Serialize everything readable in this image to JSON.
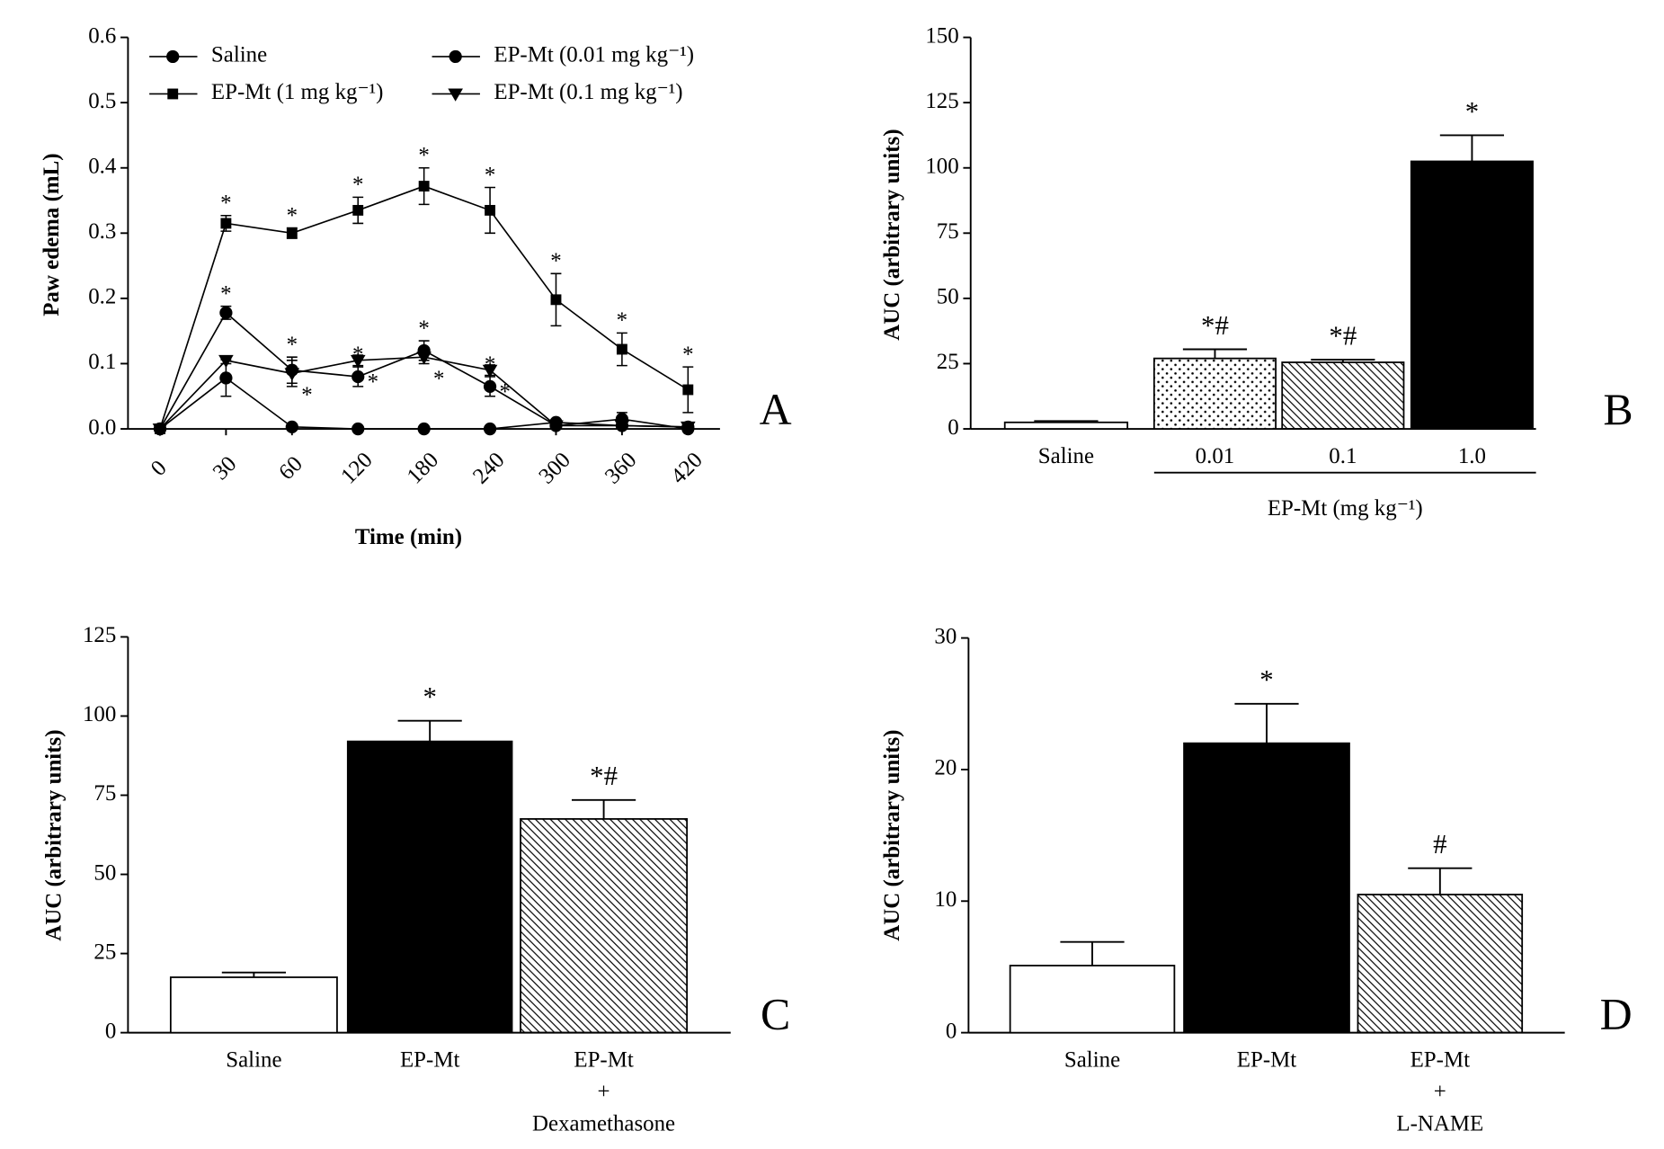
{
  "chart_data": [
    {
      "type": "line",
      "panel_label": "A",
      "ylabel": "Paw edema (mL)",
      "xlabel": "Time (min)",
      "categories": [
        "0",
        "30",
        "60",
        "120",
        "180",
        "240",
        "300",
        "360",
        "420"
      ],
      "ylim": [
        0,
        0.6
      ],
      "yticks": [
        {
          "value": 0,
          "label": "0.0"
        },
        0.1,
        0.2,
        0.3,
        0.4,
        0.5,
        0.6
      ],
      "series": [
        {
          "name": "Saline",
          "color": "#000000",
          "marker": "circle",
          "values": [
            0,
            0.078,
            0.003,
            0,
            0,
            0,
            0.01,
            0.005,
            0.003
          ],
          "errors": [
            0,
            0.028,
            0,
            0,
            0,
            0,
            0,
            0,
            0
          ]
        },
        {
          "name": "EP-Mt (1 mg kg⁻¹)",
          "color": "#000000",
          "marker": "square",
          "values": [
            0,
            0.315,
            0.3,
            0.335,
            0.372,
            0.335,
            0.198,
            0.122,
            0.06
          ],
          "errors": [
            0,
            0.012,
            0.008,
            0.02,
            0.028,
            0.035,
            0.04,
            0.025,
            0.035
          ],
          "annotations": [
            null,
            "*",
            "*",
            "*",
            "*",
            "*",
            "*",
            "*",
            "*"
          ]
        },
        {
          "name": "EP-Mt (0.01 mg kg⁻¹)",
          "color": "#000000",
          "marker": "circle",
          "values": [
            0,
            0.178,
            0.09,
            0.08,
            0.12,
            0.065,
            0.005,
            0.015,
            0
          ],
          "errors": [
            0,
            0.01,
            0.02,
            0.015,
            0.015,
            0.015,
            0,
            0.01,
            0
          ],
          "annotations": [
            null,
            "*",
            "*",
            "*",
            "*",
            "*",
            null,
            null,
            null
          ]
        },
        {
          "name": "EP-Mt (0.1 mg kg⁻¹)",
          "color": "#000000",
          "marker": "triangle-down",
          "values": [
            0,
            0.105,
            0.085,
            0.105,
            0.11,
            0.09,
            0.005,
            0.005,
            0.003
          ],
          "errors": [
            0,
            0.005,
            0.02,
            0.008,
            0.01,
            0.008,
            0,
            0,
            0
          ],
          "annotations": [
            null,
            null,
            "*",
            "*",
            "*",
            "*",
            null,
            null,
            null
          ]
        }
      ]
    },
    {
      "type": "bar",
      "panel_label": "B",
      "ylabel": "AUC (arbitrary units)",
      "group_label": "EP-Mt (mg kg⁻¹)",
      "categories": [
        "Saline",
        "0.01",
        "0.1",
        "1.0"
      ],
      "values": [
        2.5,
        27,
        25.5,
        102.5
      ],
      "errors": [
        0.5,
        3.5,
        1,
        10
      ],
      "annotations": [
        null,
        "*#",
        "*#",
        "*"
      ],
      "fills": [
        "white",
        "dots",
        "hatch",
        "black"
      ],
      "ylim": [
        0,
        150
      ],
      "yticks": [
        0,
        25,
        50,
        75,
        100,
        125,
        150
      ]
    },
    {
      "type": "bar",
      "panel_label": "C",
      "ylabel": "AUC (arbitrary units)",
      "categories": [
        "Saline",
        "EP-Mt",
        [
          "EP-Mt",
          "+",
          "Dexamethasone"
        ]
      ],
      "values": [
        17.5,
        92,
        67.5
      ],
      "errors": [
        1.5,
        6.5,
        6
      ],
      "annotations": [
        null,
        "*",
        "*#"
      ],
      "fills": [
        "white",
        "black",
        "hatch"
      ],
      "ylim": [
        0,
        125
      ],
      "yticks": [
        0,
        25,
        50,
        75,
        100,
        125
      ]
    },
    {
      "type": "bar",
      "panel_label": "D",
      "ylabel": "AUC (arbitrary units)",
      "categories": [
        "Saline",
        "EP-Mt",
        [
          "EP-Mt",
          "+",
          "L-NAME"
        ]
      ],
      "values": [
        5.1,
        22,
        10.5
      ],
      "errors": [
        1.8,
        3,
        2
      ],
      "annotations": [
        null,
        "*",
        "#"
      ],
      "fills": [
        "white",
        "black",
        "hatch"
      ],
      "ylim": [
        0,
        30
      ],
      "yticks": [
        0,
        10,
        20,
        30
      ]
    }
  ]
}
